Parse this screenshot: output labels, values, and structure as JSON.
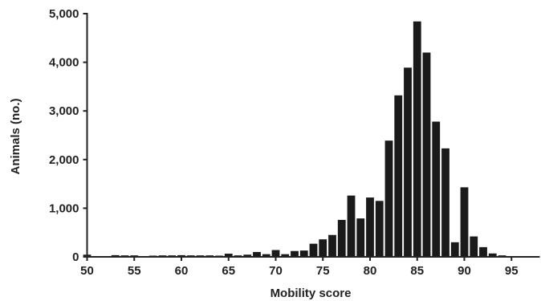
{
  "chart_data": {
    "type": "bar",
    "title": "",
    "xlabel": "Mobility score",
    "ylabel": "Animals (no.)",
    "xlim": [
      50,
      98
    ],
    "ylim": [
      0,
      5000
    ],
    "xticks": [
      50,
      55,
      60,
      65,
      70,
      75,
      80,
      85,
      90,
      95
    ],
    "xtick_labels": [
      "50",
      "55",
      "60",
      "65",
      "70",
      "75",
      "80",
      "85",
      "90",
      "95"
    ],
    "yticks": [
      0,
      1000,
      2000,
      3000,
      4000,
      5000
    ],
    "ytick_labels": [
      "0",
      "1,000",
      "2,000",
      "3,000",
      "4,000",
      "5,000"
    ],
    "grid": false,
    "bar_color": "#1a1a1a",
    "axis_color": "#222222",
    "x": [
      50,
      51,
      52,
      53,
      54,
      55,
      56,
      57,
      58,
      59,
      60,
      61,
      62,
      63,
      64,
      65,
      66,
      67,
      68,
      69,
      70,
      71,
      72,
      73,
      74,
      75,
      76,
      77,
      78,
      79,
      80,
      81,
      82,
      83,
      84,
      85,
      86,
      87,
      88,
      89,
      90,
      91,
      92,
      93,
      94,
      95
    ],
    "values": [
      45,
      10,
      10,
      35,
      30,
      30,
      15,
      25,
      30,
      30,
      35,
      30,
      30,
      30,
      25,
      65,
      30,
      45,
      100,
      55,
      140,
      55,
      120,
      130,
      270,
      360,
      450,
      760,
      1260,
      790,
      1220,
      1150,
      2390,
      3320,
      3890,
      4840,
      4200,
      2780,
      2230,
      300,
      1430,
      420,
      200,
      70,
      30,
      15
    ]
  }
}
